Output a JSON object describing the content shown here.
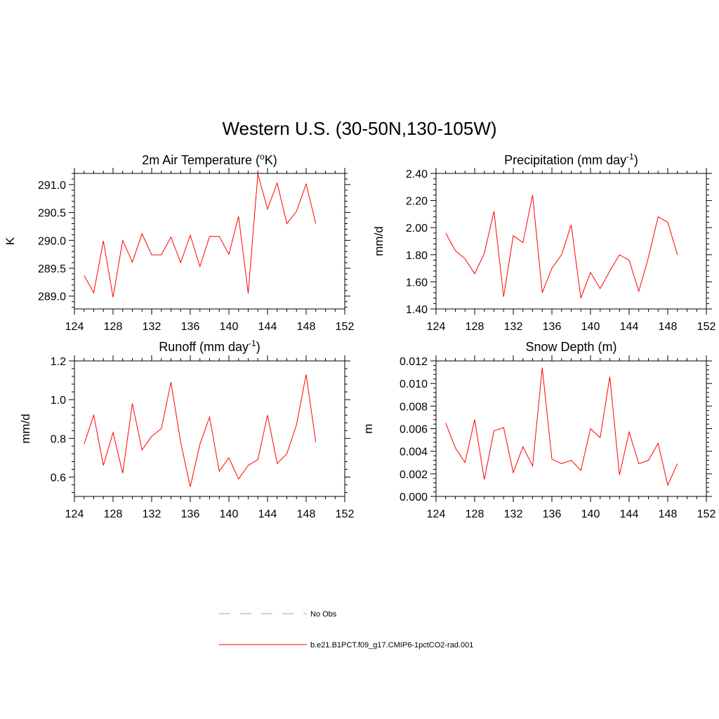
{
  "title": "Western U.S. (30-50N,130-105W)",
  "chart_data": [
    {
      "type": "line",
      "title": "2m Air Temperature (",
      "title_sup": "o",
      "title_tail": "K)",
      "ylabel": "K",
      "xlabel": "",
      "xlim": [
        124,
        152
      ],
      "ylim": [
        288.77,
        291.2
      ],
      "xticks": [
        124,
        128,
        132,
        136,
        140,
        144,
        148,
        152
      ],
      "yticks": [
        289.0,
        289.5,
        290.0,
        290.5,
        291.0
      ],
      "ytick_labels": [
        "289.0",
        "289.5",
        "290.0",
        "290.5",
        "291.0"
      ],
      "x": [
        125,
        126,
        127,
        128,
        129,
        130,
        131,
        132,
        133,
        134,
        135,
        136,
        137,
        138,
        139,
        140,
        141,
        142,
        143,
        144,
        145,
        146,
        147,
        148,
        149
      ],
      "series": [
        {
          "color": "#ff0000",
          "values": [
            289.37,
            289.06,
            289.99,
            288.98,
            290.0,
            289.61,
            290.12,
            289.74,
            289.74,
            290.06,
            289.6,
            290.09,
            289.53,
            290.07,
            290.07,
            289.75,
            290.43,
            289.05,
            291.19,
            290.56,
            291.03,
            290.3,
            290.52,
            291.01,
            290.3
          ]
        }
      ]
    },
    {
      "type": "line",
      "title": "Precipitation (mm day",
      "title_sup": "-1",
      "title_tail": ")",
      "ylabel": "mm/d",
      "xlabel": "",
      "xlim": [
        124,
        152
      ],
      "ylim": [
        1.4,
        2.4
      ],
      "xticks": [
        124,
        128,
        132,
        136,
        140,
        144,
        148,
        152
      ],
      "yticks": [
        1.4,
        1.6,
        1.8,
        2.0,
        2.2,
        2.4
      ],
      "ytick_labels": [
        "1.40",
        "1.60",
        "1.80",
        "2.00",
        "2.20",
        "2.40"
      ],
      "x": [
        125,
        126,
        127,
        128,
        129,
        130,
        131,
        132,
        133,
        134,
        135,
        136,
        137,
        138,
        139,
        140,
        141,
        142,
        143,
        144,
        145,
        146,
        147,
        148,
        149
      ],
      "series": [
        {
          "color": "#ff0000",
          "values": [
            1.96,
            1.83,
            1.77,
            1.66,
            1.81,
            2.12,
            1.49,
            1.94,
            1.89,
            2.24,
            1.52,
            1.7,
            1.8,
            2.02,
            1.48,
            1.67,
            1.55,
            1.68,
            1.8,
            1.76,
            1.53,
            1.78,
            2.08,
            2.04,
            1.8
          ]
        }
      ]
    },
    {
      "type": "line",
      "title": "Runoff (mm day",
      "title_sup": "-1",
      "title_tail": ")",
      "ylabel": "mm/d",
      "xlabel": "",
      "xlim": [
        124,
        152
      ],
      "ylim": [
        0.5,
        1.2
      ],
      "xticks": [
        124,
        128,
        132,
        136,
        140,
        144,
        148,
        152
      ],
      "yticks": [
        0.6,
        0.8,
        1.0,
        1.2
      ],
      "ytick_labels": [
        "0.6",
        "0.8",
        "1.0",
        "1.2"
      ],
      "x": [
        125,
        126,
        127,
        128,
        129,
        130,
        131,
        132,
        133,
        134,
        135,
        136,
        137,
        138,
        139,
        140,
        141,
        142,
        143,
        144,
        145,
        146,
        147,
        148,
        149
      ],
      "series": [
        {
          "color": "#ff0000",
          "values": [
            0.77,
            0.92,
            0.66,
            0.83,
            0.62,
            0.98,
            0.74,
            0.81,
            0.85,
            1.09,
            0.78,
            0.55,
            0.77,
            0.91,
            0.63,
            0.7,
            0.59,
            0.66,
            0.69,
            0.92,
            0.67,
            0.72,
            0.87,
            1.13,
            0.78
          ]
        }
      ]
    },
    {
      "type": "line",
      "title": "Snow Depth (m)",
      "title_sup": "",
      "title_tail": "",
      "ylabel": "m",
      "xlabel": "",
      "xlim": [
        124,
        152
      ],
      "ylim": [
        0.0,
        0.012
      ],
      "xticks": [
        124,
        128,
        132,
        136,
        140,
        144,
        148,
        152
      ],
      "yticks": [
        0.0,
        0.002,
        0.004,
        0.006,
        0.008,
        0.01,
        0.012
      ],
      "ytick_labels": [
        "0.000",
        "0.002",
        "0.004",
        "0.006",
        "0.008",
        "0.010",
        "0.012"
      ],
      "x": [
        125,
        126,
        127,
        128,
        129,
        130,
        131,
        132,
        133,
        134,
        135,
        136,
        137,
        138,
        139,
        140,
        141,
        142,
        143,
        144,
        145,
        146,
        147,
        148,
        149
      ],
      "series": [
        {
          "color": "#ff0000",
          "values": [
            0.0065,
            0.0043,
            0.003,
            0.0068,
            0.0015,
            0.0058,
            0.0061,
            0.0021,
            0.0044,
            0.0027,
            0.0114,
            0.0033,
            0.0029,
            0.0032,
            0.0023,
            0.006,
            0.0052,
            0.0106,
            0.0019,
            0.0057,
            0.0029,
            0.0032,
            0.0047,
            0.001,
            0.0029
          ]
        }
      ]
    }
  ],
  "legend": [
    {
      "label": "No Obs",
      "color": "#9a9ae6",
      "style": "dashed"
    },
    {
      "label": "b.e21.B1PCT.f09_g17.CMIP6-1pctCO2-rad.001",
      "color": "#ff0000",
      "style": "solid"
    }
  ]
}
